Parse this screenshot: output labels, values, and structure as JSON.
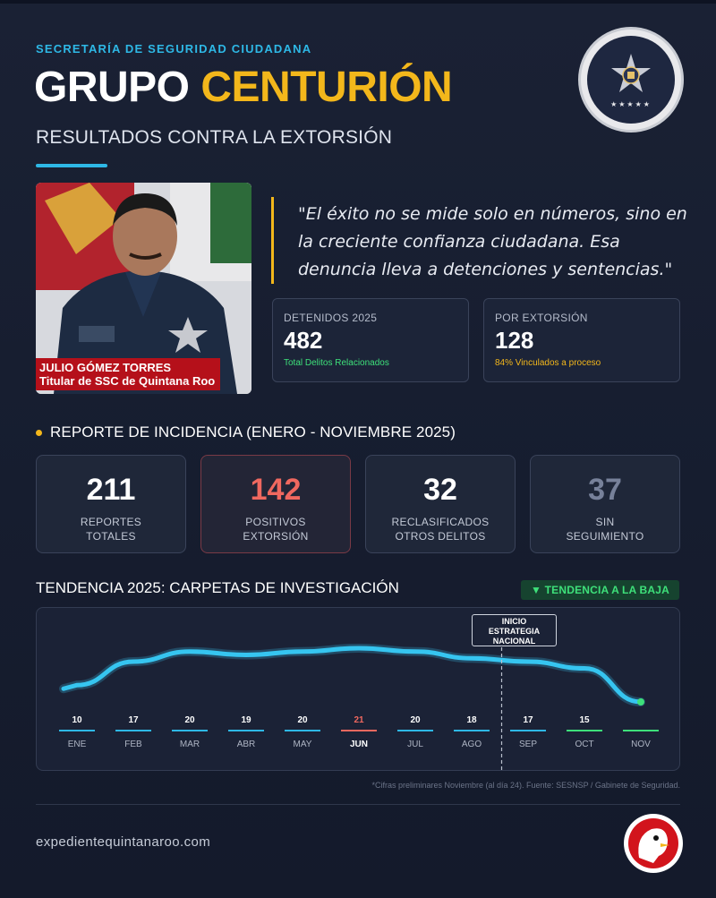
{
  "header": {
    "kicker": "SECRETARÍA DE SEGURIDAD CIUDADANA",
    "title_part1": "GRUPO",
    "title_part2": "CENTURIÓN",
    "subtitle": "RESULTADOS CONTRA LA EXTORSIÓN"
  },
  "badge": {
    "stars": "★★★★★"
  },
  "profile": {
    "name": "JULIO GÓMEZ TORRES",
    "role": "Titular de SSC de Quintana Roo"
  },
  "quote": "\"El éxito no se mide solo en números, sino en la creciente confianza ciudadana. Esa denuncia lleva a detenciones y sentencias.\"",
  "stats": [
    {
      "label": "DETENIDOS 2025",
      "value": "482",
      "note": "Total Delitos Relacionados",
      "color": "#3ee07a"
    },
    {
      "label": "POR EXTORSIÓN",
      "value": "128",
      "note": "84% Vinculados a proceso",
      "color": "#f3b71b"
    }
  ],
  "report": {
    "heading": "REPORTE DE INCIDENCIA (ENERO - NOVIEMBRE 2025)",
    "cards": [
      {
        "number": "211",
        "line1": "REPORTES",
        "line2": "TOTALES"
      },
      {
        "number": "142",
        "line1": "POSITIVOS",
        "line2": "EXTORSIÓN"
      },
      {
        "number": "32",
        "line1": "RECLASIFICADOS",
        "line2": "OTROS DELITOS"
      },
      {
        "number": "37",
        "line1": "SIN",
        "line2": "SEGUIMIENTO"
      }
    ]
  },
  "trend": {
    "title": "TENDENCIA 2025: CARPETAS DE INVESTIGACIÓN",
    "badge": "▼ TENDENCIA A LA BAJA",
    "marker_line1": "INICIO",
    "marker_line2": "ESTRATEGIA",
    "marker_line3": "NACIONAL"
  },
  "chart_data": {
    "type": "line",
    "title": "TENDENCIA 2025: CARPETAS DE INVESTIGACIÓN",
    "categories": [
      "ENE",
      "FEB",
      "MAR",
      "ABR",
      "MAY",
      "JUN",
      "JUL",
      "AGO",
      "SEP",
      "OCT",
      "NOV"
    ],
    "values": [
      10,
      17,
      20,
      19,
      20,
      21,
      20,
      18,
      17,
      15,
      5
    ],
    "value_labels": [
      "10",
      "17",
      "20",
      "19",
      "20",
      "21",
      "20",
      "18",
      "17",
      "15",
      ""
    ],
    "highlight_category": "JUN",
    "annotation": {
      "between": [
        "AGO",
        "SEP"
      ],
      "text": "INICIO ESTRATEGIA NACIONAL"
    },
    "category_colors": {
      "default": "#2eb8e6",
      "JUN": "#f0685f",
      "OCT": "#3ee07a",
      "NOV": "#3ee07a"
    },
    "line_color": "#36c5f0",
    "grid": false
  },
  "footnote": "*Cifras preliminares Noviembre (al día 24). Fuente: SESNSP / Gabinete de Seguridad.",
  "footer": {
    "url": "expedientequintanaroo.com"
  }
}
